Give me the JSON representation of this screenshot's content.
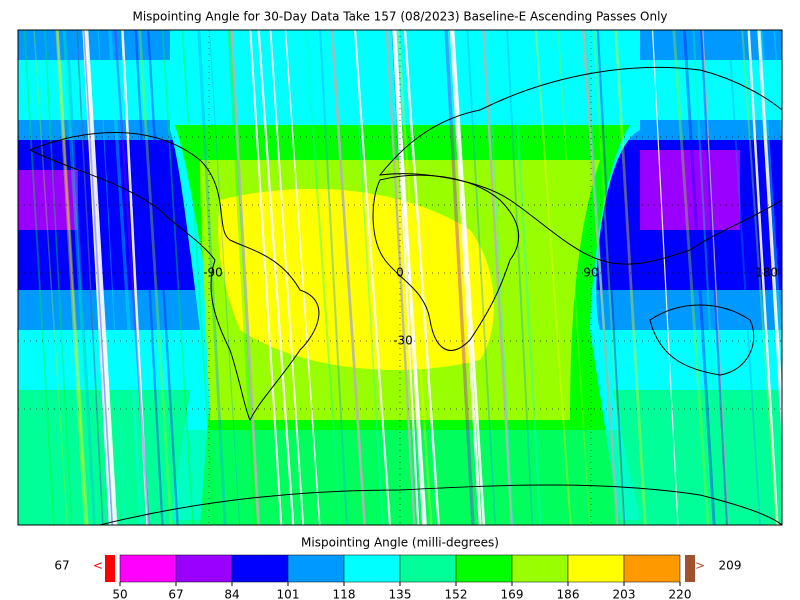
{
  "title": "Mispointing Angle for 30-Day Data Take 157 (08/2023) Baseline-E Ascending Passes Only",
  "map": {
    "lon_labels": [
      "-90",
      "0",
      "90",
      "180"
    ],
    "lat_labels": [
      "-30"
    ]
  },
  "colorbar": {
    "label": "Mispointing Angle (milli-degrees)",
    "ticks": [
      50,
      67,
      84,
      101,
      118,
      135,
      152,
      169,
      186,
      203,
      220
    ],
    "colors": [
      "#ff00ff",
      "#9900ff",
      "#0000ff",
      "#0099ff",
      "#00ffff",
      "#00ff99",
      "#00ff00",
      "#99ff00",
      "#ffff00",
      "#ff9900"
    ],
    "under_color": "#ff0000",
    "over_color": "#a0522d",
    "under_arrow": "<",
    "over_arrow": ">",
    "min_value": 67,
    "max_value": 209
  }
}
